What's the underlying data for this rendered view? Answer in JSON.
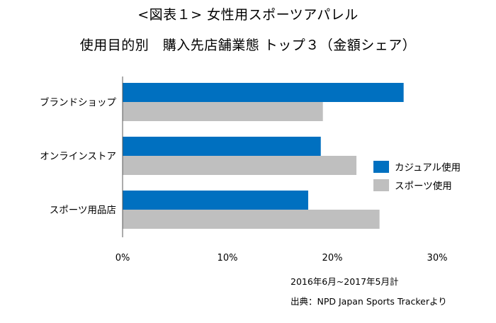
{
  "chart_data": {
    "type": "bar",
    "orientation": "horizontal",
    "title": "<図表１> 女性用スポーツアパレル",
    "subtitle": "使用目的別　購入先店舗業態 トップ３（金額シェア）",
    "categories": [
      "ブランドショップ",
      "オンラインストア",
      "スポーツ用品店"
    ],
    "series": [
      {
        "name": "カジュアル使用",
        "values": [
          26.8,
          18.9,
          17.7
        ],
        "color": "#0070c0"
      },
      {
        "name": "スポーツ使用",
        "values": [
          19.1,
          22.3,
          24.5
        ],
        "color": "#bfbfbf"
      }
    ],
    "xlim": [
      0,
      30
    ],
    "xticks": [
      0,
      10,
      20,
      30
    ],
    "xtick_labels": [
      "0%",
      "10%",
      "20%",
      "30%"
    ],
    "grid": false,
    "legend_position": "right"
  },
  "notes": {
    "period": "2016年6月~2017年5月計",
    "source": "出典：NPD Japan Sports Trackerより"
  }
}
